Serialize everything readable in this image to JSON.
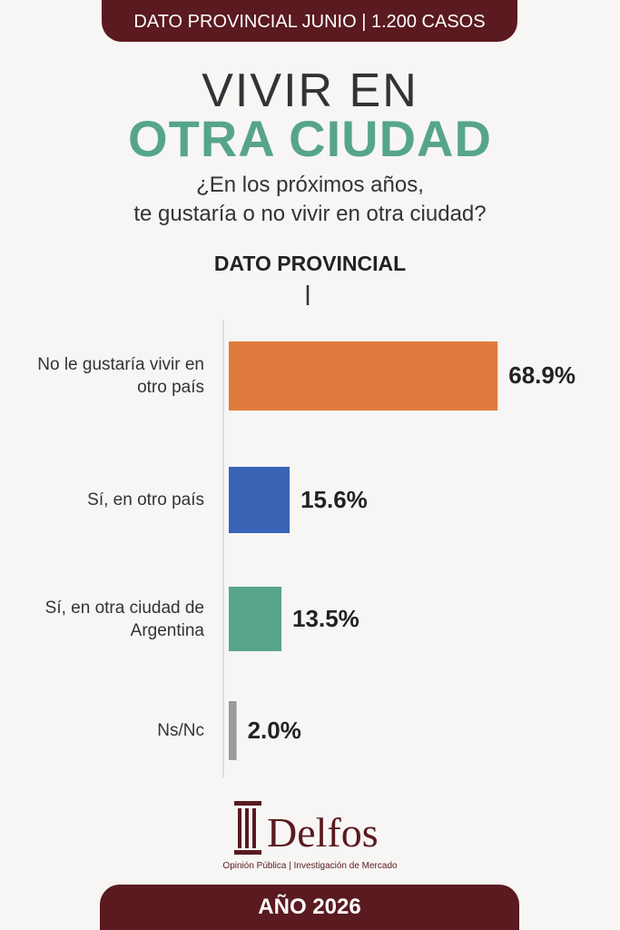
{
  "header": "DATO PROVINCIAL JUNIO | 1.200 CASOS",
  "title": {
    "line1": "VIVIR EN",
    "line2": "OTRA CIUDAD"
  },
  "subtitle": [
    "¿En los próximos años,",
    "te gustaría o no vivir en otra ciudad?"
  ],
  "chart_data": {
    "type": "bar",
    "orientation": "horizontal",
    "subtitle": "DATO PROVINCIAL",
    "categories": [
      "No le gustaría vivir en otro país",
      "Sí, en otro país",
      "Sí, en otra ciudad de Argentina",
      "Ns/Nc"
    ],
    "values": [
      68.9,
      15.6,
      13.5,
      2.0
    ],
    "value_labels": [
      "68.9%",
      "15.6%",
      "13.5%",
      "2.0%"
    ],
    "colors": [
      "#e07a3c",
      "#3a63b6",
      "#56a58a",
      "#9b9b9b"
    ]
  },
  "logo": {
    "name": "Delfos",
    "tagline": "Opinión Pública | Investigación de Mercado"
  },
  "footer": "AÑO 2026"
}
